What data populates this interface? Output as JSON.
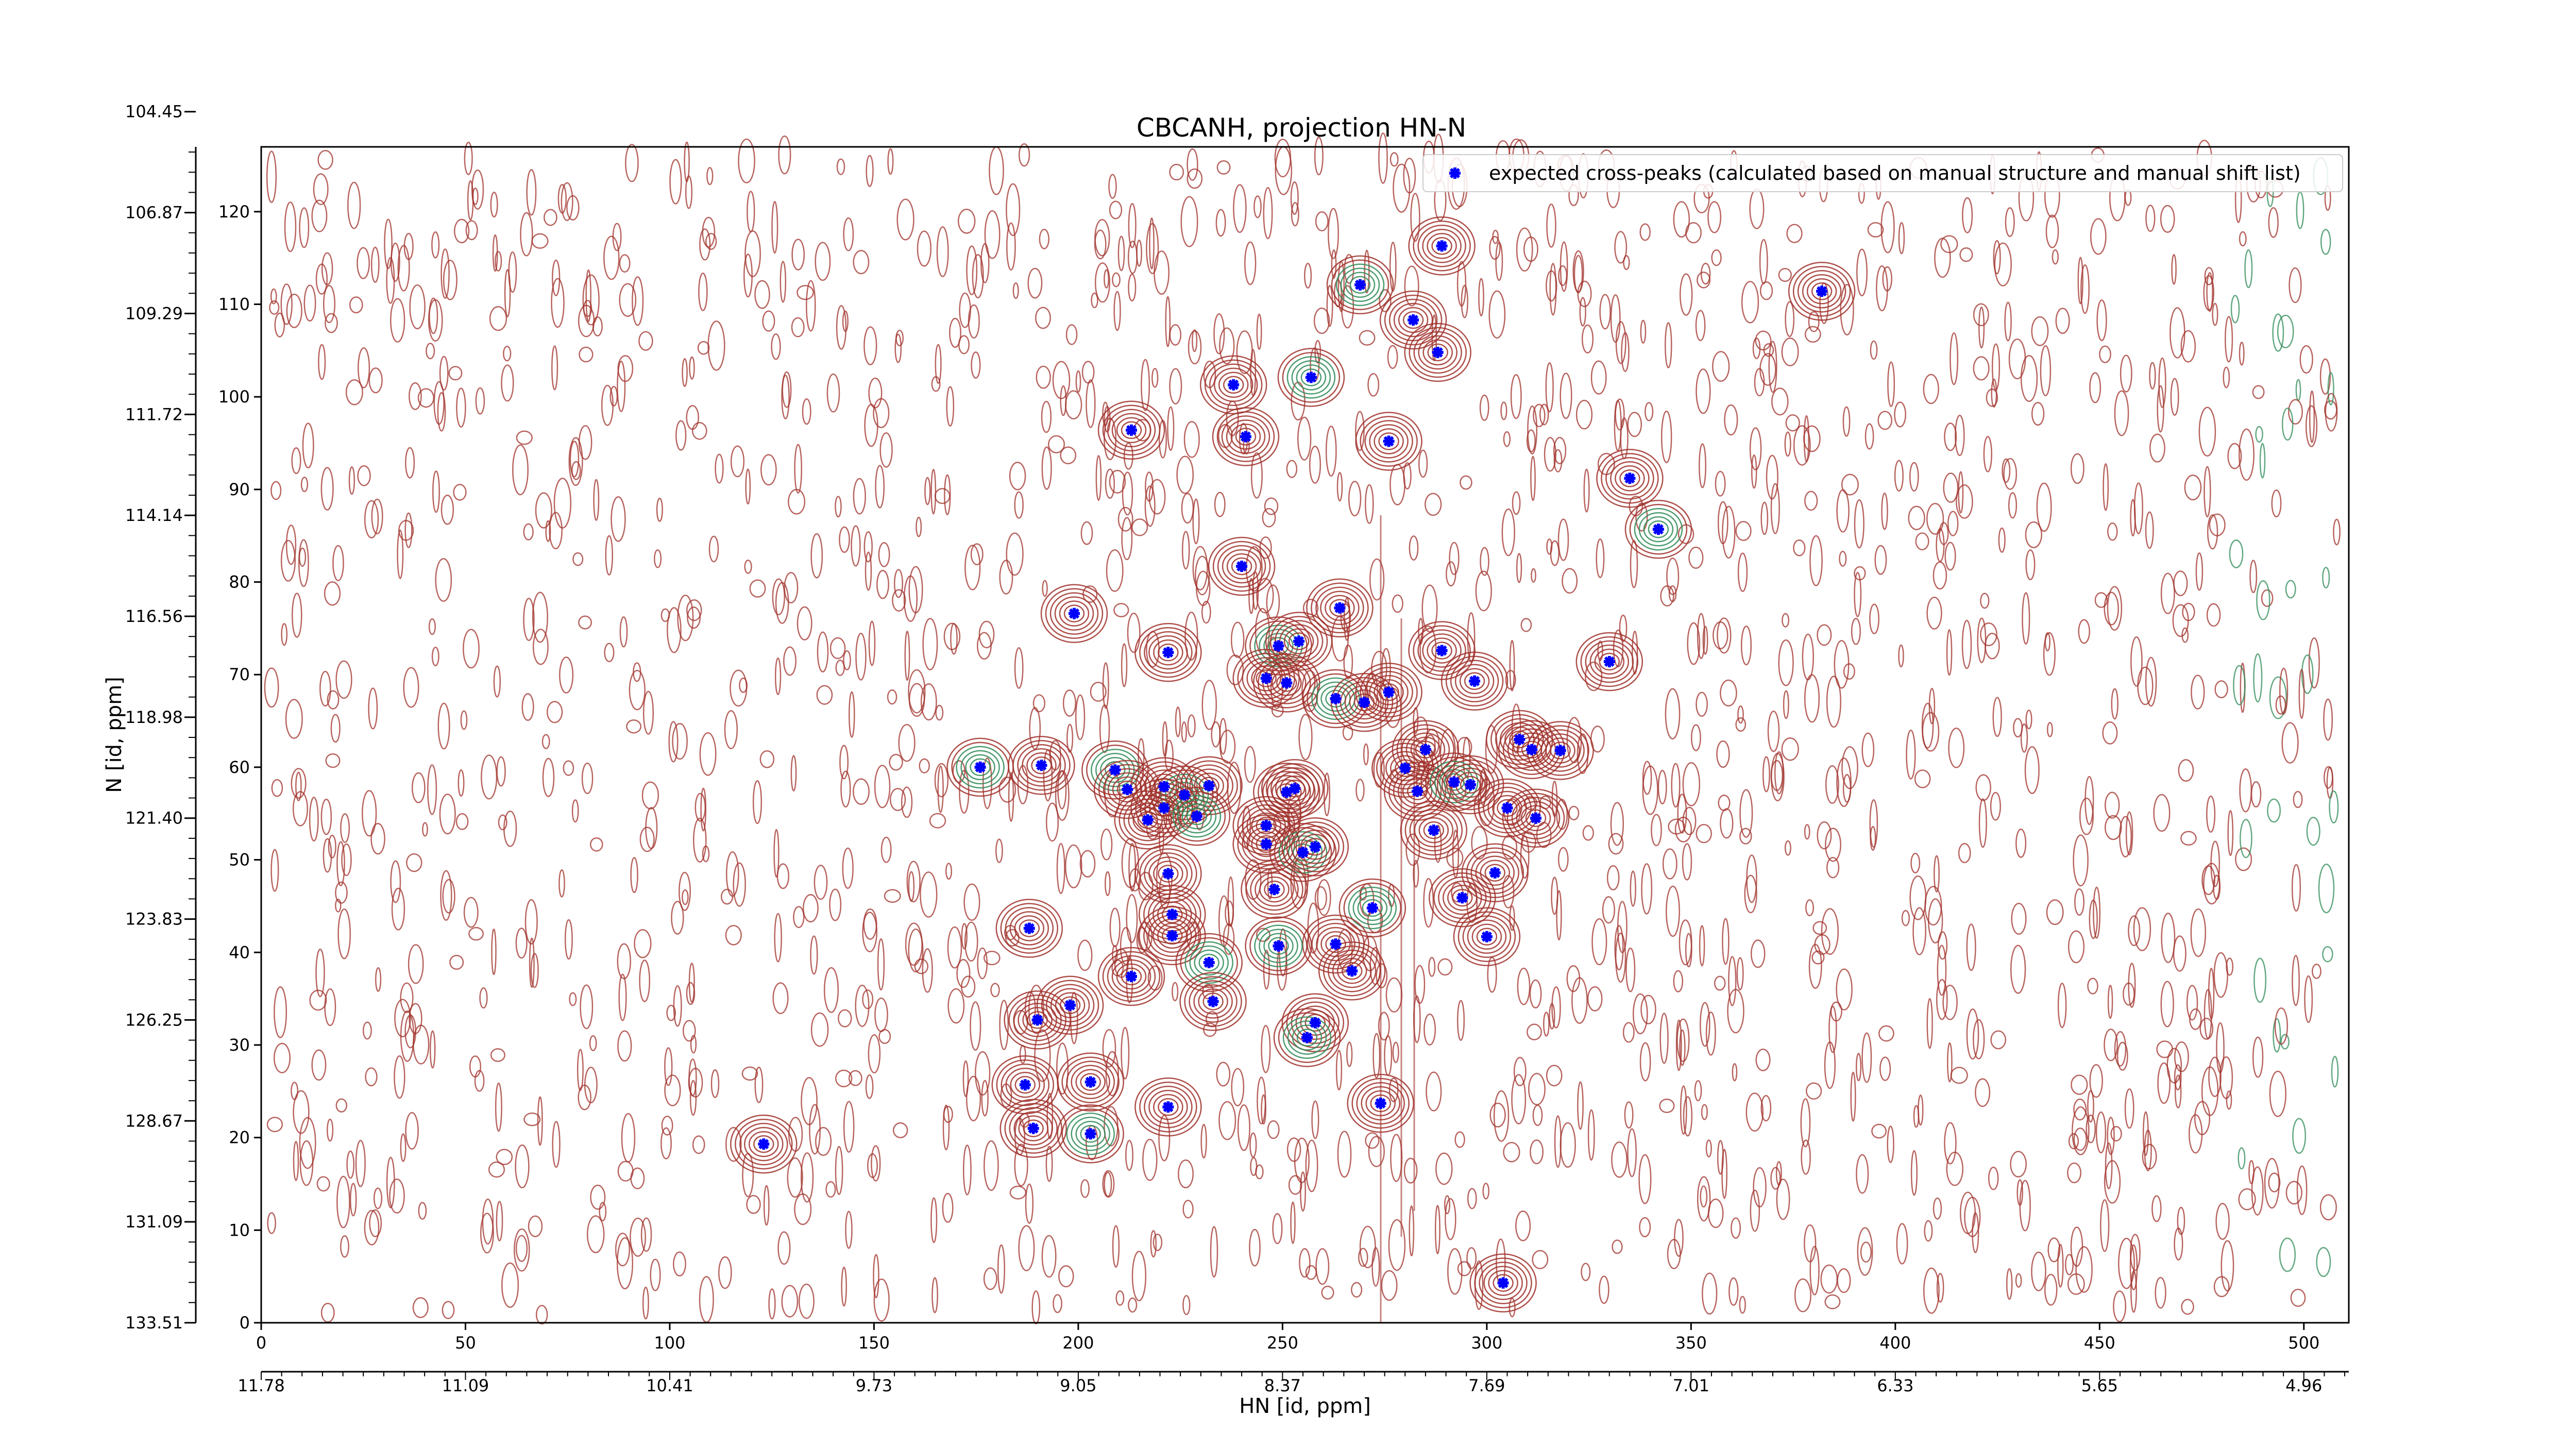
{
  "chart_data": {
    "type": "scatter",
    "title": "CBCANH, projection HN-N",
    "xlabel": "HN [id, ppm]",
    "ylabel": "N [id, ppm]",
    "xlim": [
      0,
      511
    ],
    "ylim": [
      0,
      127
    ],
    "x_ticks": [
      0,
      50,
      100,
      150,
      200,
      250,
      300,
      350,
      400,
      450,
      500
    ],
    "y_ticks": [
      0,
      10,
      20,
      30,
      40,
      50,
      60,
      70,
      80,
      90,
      100,
      110,
      120
    ],
    "ppm_x_ticks": [
      {
        "pos": 0,
        "label": "11.78"
      },
      {
        "pos": 50,
        "label": "11.09"
      },
      {
        "pos": 100,
        "label": "10.41"
      },
      {
        "pos": 150,
        "label": "9.73"
      },
      {
        "pos": 200,
        "label": "9.05"
      },
      {
        "pos": 250,
        "label": "8.37"
      },
      {
        "pos": 300,
        "label": "7.69"
      },
      {
        "pos": 350,
        "label": "7.01"
      },
      {
        "pos": 400,
        "label": "6.33"
      },
      {
        "pos": 450,
        "label": "5.65"
      },
      {
        "pos": 500,
        "label": "4.96"
      }
    ],
    "ppm_y_ticks": [
      {
        "pos": 0,
        "label": "133.51"
      },
      {
        "pos": 10.9,
        "label": "131.09"
      },
      {
        "pos": 21.8,
        "label": "128.67"
      },
      {
        "pos": 32.7,
        "label": "126.25"
      },
      {
        "pos": 43.6,
        "label": "123.83"
      },
      {
        "pos": 54.5,
        "label": "121.40"
      },
      {
        "pos": 65.4,
        "label": "118.98"
      },
      {
        "pos": 76.3,
        "label": "116.56"
      },
      {
        "pos": 87.2,
        "label": "114.14"
      },
      {
        "pos": 98.1,
        "label": "111.72"
      },
      {
        "pos": 109.0,
        "label": "109.29"
      },
      {
        "pos": 119.9,
        "label": "106.87"
      },
      {
        "pos": 130.8,
        "label": "104.45"
      }
    ],
    "legend": {
      "label": "expected cross-peaks (calculated based on manual structure and manual shift list)",
      "placement": "upper-right"
    },
    "colors": {
      "marker": "#0000ff",
      "contour_positive": "#a0302a",
      "contour_negative": "#2e8b57"
    },
    "series": [
      {
        "name": "expected cross-peaks (calculated based on manual structure and manual shift list)",
        "points": [
          [
            289,
            116.3
          ],
          [
            269,
            112.1
          ],
          [
            282,
            108.3
          ],
          [
            288,
            104.8
          ],
          [
            382,
            111.4
          ],
          [
            238,
            101.3
          ],
          [
            257,
            102.1
          ],
          [
            213,
            96.4
          ],
          [
            241,
            95.7
          ],
          [
            276,
            95.2
          ],
          [
            335,
            91.2
          ],
          [
            342,
            85.7
          ],
          [
            240,
            81.7
          ],
          [
            199,
            76.6
          ],
          [
            264,
            77.2
          ],
          [
            222,
            72.4
          ],
          [
            249,
            73.1
          ],
          [
            254,
            73.6
          ],
          [
            289,
            72.6
          ],
          [
            246,
            69.6
          ],
          [
            251,
            69.1
          ],
          [
            263,
            67.4
          ],
          [
            270,
            67.0
          ],
          [
            276,
            68.1
          ],
          [
            297,
            69.3
          ],
          [
            330,
            71.4
          ],
          [
            176,
            60.0
          ],
          [
            191,
            60.2
          ],
          [
            308,
            63.0
          ],
          [
            311,
            61.9
          ],
          [
            318,
            61.8
          ],
          [
            209,
            59.7
          ],
          [
            280,
            59.9
          ],
          [
            285,
            61.9
          ],
          [
            212,
            57.6
          ],
          [
            221,
            57.9
          ],
          [
            226,
            57.0
          ],
          [
            232,
            58.0
          ],
          [
            251,
            57.3
          ],
          [
            253,
            57.7
          ],
          [
            283,
            57.4
          ],
          [
            292,
            58.4
          ],
          [
            296,
            58.1
          ],
          [
            305,
            55.6
          ],
          [
            221,
            55.6
          ],
          [
            217,
            54.3
          ],
          [
            229,
            54.7
          ],
          [
            246,
            53.7
          ],
          [
            287,
            53.2
          ],
          [
            312,
            54.5
          ],
          [
            246,
            51.7
          ],
          [
            255,
            50.8
          ],
          [
            258,
            51.4
          ],
          [
            222,
            48.5
          ],
          [
            302,
            48.6
          ],
          [
            248,
            46.8
          ],
          [
            272,
            44.8
          ],
          [
            294,
            45.9
          ],
          [
            223,
            44.1
          ],
          [
            188,
            42.6
          ],
          [
            223,
            41.8
          ],
          [
            232,
            38.9
          ],
          [
            263,
            40.9
          ],
          [
            267,
            38.0
          ],
          [
            213,
            37.4
          ],
          [
            300,
            41.7
          ],
          [
            249,
            40.7
          ],
          [
            233,
            34.7
          ],
          [
            198,
            34.3
          ],
          [
            190,
            32.7
          ],
          [
            258,
            32.4
          ],
          [
            256,
            30.8
          ],
          [
            203,
            26.0
          ],
          [
            187,
            25.7
          ],
          [
            222,
            23.3
          ],
          [
            189,
            21.0
          ],
          [
            203,
            20.4
          ],
          [
            123,
            19.3
          ],
          [
            274,
            23.7
          ],
          [
            304,
            4.3
          ]
        ]
      }
    ]
  }
}
